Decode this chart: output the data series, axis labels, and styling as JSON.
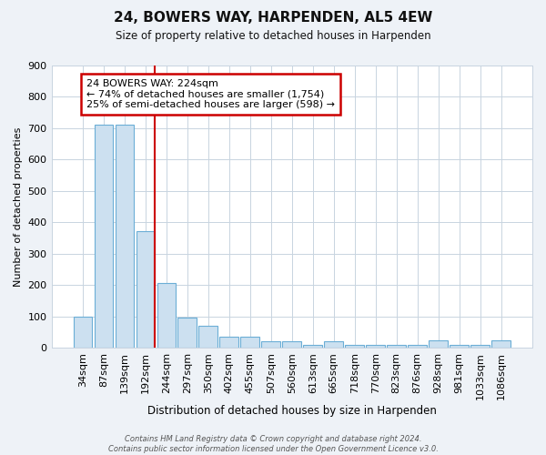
{
  "title": "24, BOWERS WAY, HARPENDEN, AL5 4EW",
  "subtitle": "Size of property relative to detached houses in Harpenden",
  "bar_labels": [
    "34sqm",
    "87sqm",
    "139sqm",
    "192sqm",
    "244sqm",
    "297sqm",
    "350sqm",
    "402sqm",
    "455sqm",
    "507sqm",
    "560sqm",
    "613sqm",
    "665sqm",
    "718sqm",
    "770sqm",
    "823sqm",
    "876sqm",
    "928sqm",
    "981sqm",
    "1033sqm",
    "1086sqm"
  ],
  "bar_values": [
    100,
    710,
    710,
    370,
    205,
    95,
    70,
    35,
    35,
    20,
    20,
    10,
    20,
    10,
    10,
    10,
    10,
    25,
    10,
    10,
    25
  ],
  "bar_fill_color": "#cce0f0",
  "bar_edge_color": "#6baed6",
  "ylabel": "Number of detached properties",
  "xlabel": "Distribution of detached houses by size in Harpenden",
  "ylim": [
    0,
    900
  ],
  "yticks": [
    0,
    100,
    200,
    300,
    400,
    500,
    600,
    700,
    800,
    900
  ],
  "vline_color": "#cc0000",
  "annotation_title": "24 BOWERS WAY: 224sqm",
  "annotation_line1": "← 74% of detached houses are smaller (1,754)",
  "annotation_line2": "25% of semi-detached houses are larger (598) →",
  "footnote": "Contains HM Land Registry data © Crown copyright and database right 2024.\nContains public sector information licensed under the Open Government Licence v3.0.",
  "bg_color": "#eef2f7",
  "plot_bg_color": "#ffffff",
  "grid_color": "#c8d4e0"
}
